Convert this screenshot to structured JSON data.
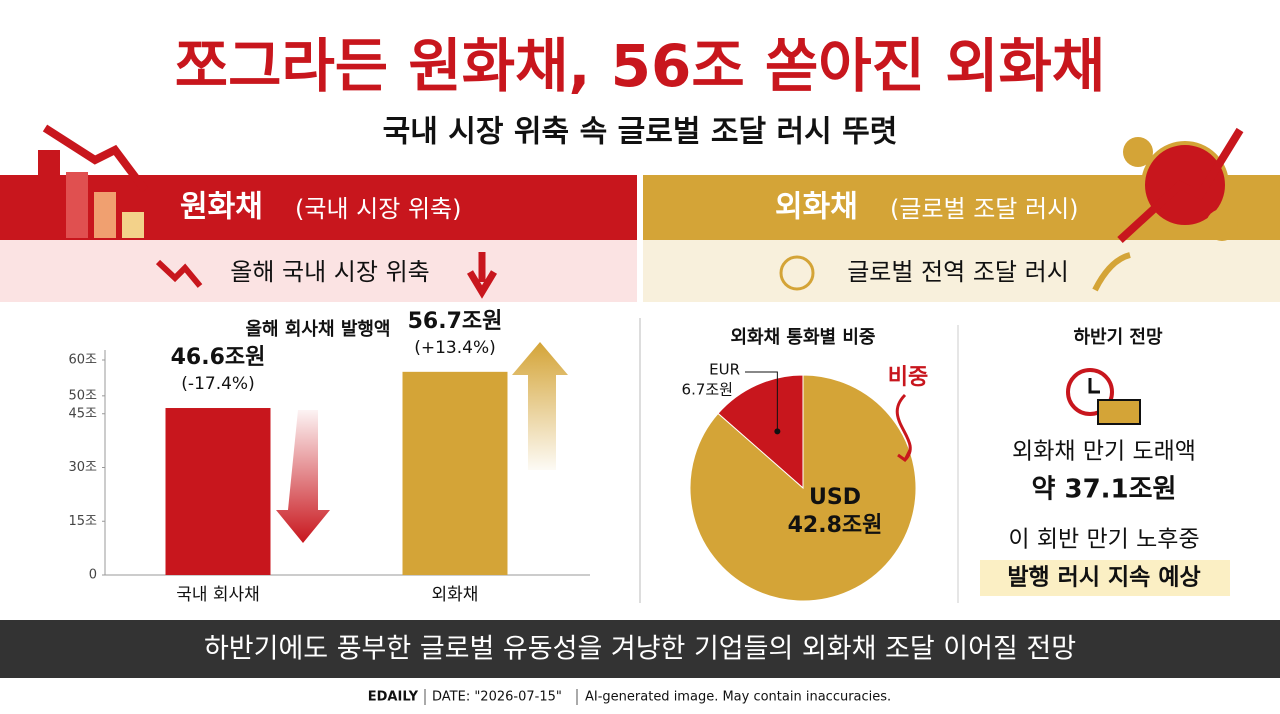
{
  "header": {
    "title": "쪼그라든 원화채, 56조 쏟아진 외화채",
    "subtitle": "국내 시장 위축 속 글로벌 조달 러시 뚜렷"
  },
  "panels": [
    {
      "name": "원화채",
      "note": "(국내 시장 위축)",
      "banner": "올해 국내 시장 위축"
    },
    {
      "name": "외화채",
      "note": "(글로벌 조달 러시)",
      "banner": "글로벌 전역 조달 러시"
    }
  ],
  "chart_data": [
    {
      "type": "bar",
      "title": "올해 회사채 발행액",
      "categories": [
        "국내 회사채",
        "외화채"
      ],
      "values": [
        46.6,
        56.7
      ],
      "value_labels": [
        "46.6조원",
        "56.7조원"
      ],
      "annotations": [
        "(-17.4%)",
        "(+13.4%)"
      ],
      "colors": [
        "#c8161d",
        "#d4a437"
      ],
      "ylim": [
        0,
        60
      ],
      "yticks": [
        0,
        {
          "value": 15,
          "label": "15조"
        },
        {
          "value": 30,
          "label": "30조"
        },
        {
          "value": 45,
          "label": "45조"
        },
        {
          "value": 50,
          "label": "50조"
        },
        {
          "value": 60,
          "label": "60조"
        }
      ]
    },
    {
      "type": "pie",
      "title": "외화채 통화별 비중",
      "categories": [
        "EUR",
        "USD"
      ],
      "values": [
        6.7,
        42.8
      ],
      "value_labels": [
        "6.7조원",
        "42.8조원"
      ],
      "colors": [
        "#c8161d",
        "#d4a437"
      ],
      "annotation": "비중"
    }
  ],
  "outlook": {
    "title": "하반기 전망",
    "label": "외화채 만기 도래액",
    "amount": "약 37.1조원",
    "line1": "이 회반 만기 노후중",
    "line2": "발행 러시 지속 예상"
  },
  "banner": "하반기에도 풍부한 글로벌 유동성을 겨냥한 기업들의 외화채 조달 이어질 전망",
  "footer": {
    "source": "EDAILY",
    "date": "DATE: \"2026-07-15\"",
    "disclaimer": "AI-generated image. May contain inaccuracies."
  }
}
